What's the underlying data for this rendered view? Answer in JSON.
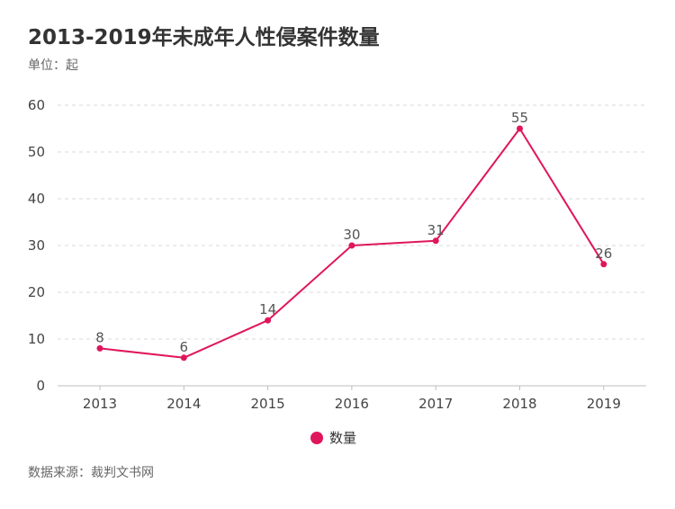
{
  "chart_data": {
    "type": "line",
    "title": "2013-2019年未成年人性侵案件数量",
    "unit_label": "单位：起",
    "source": "数据来源：裁判文书网",
    "xlabel": "",
    "ylabel": "",
    "categories": [
      "2013",
      "2014",
      "2015",
      "2016",
      "2017",
      "2018",
      "2019"
    ],
    "series": [
      {
        "name": "数量",
        "values": [
          8,
          6,
          14,
          30,
          31,
          55,
          26
        ]
      }
    ],
    "ylim": [
      0,
      60
    ],
    "yticks": [
      0,
      10,
      20,
      30,
      40,
      50,
      60
    ],
    "grid": true,
    "legend_position": "bottom-center",
    "series_color": "#E0165C"
  }
}
